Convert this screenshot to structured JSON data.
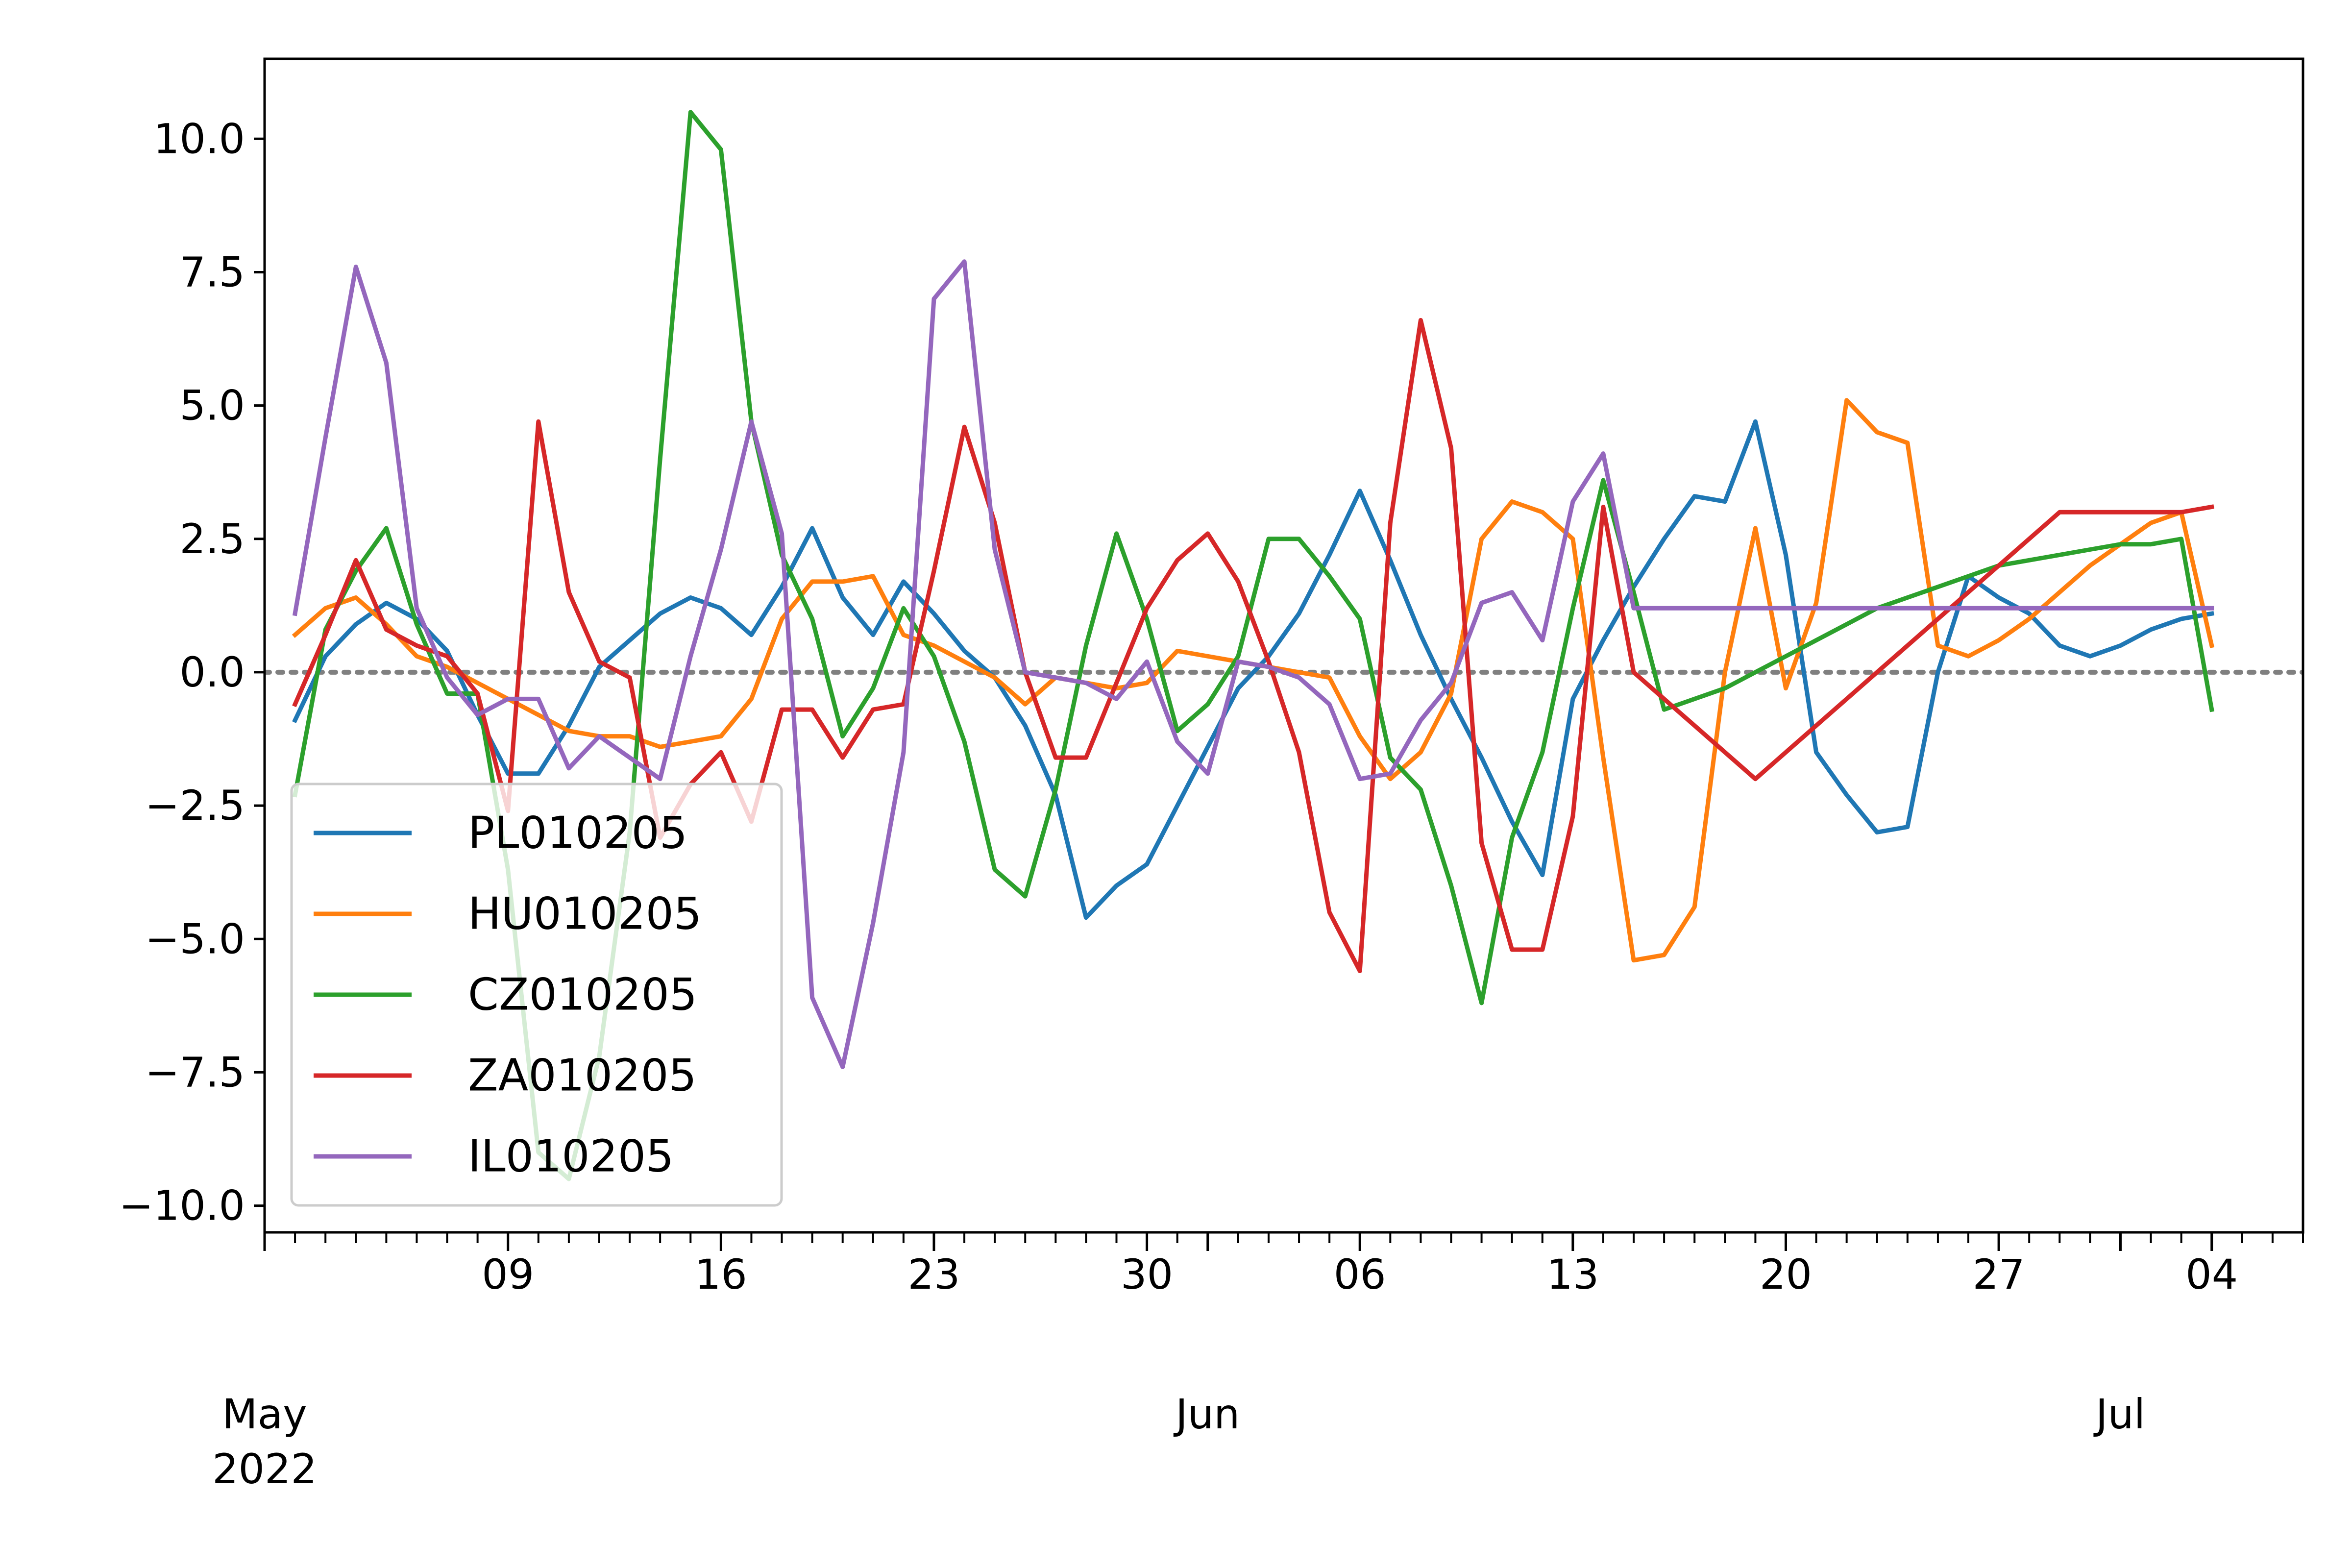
{
  "chart_data": {
    "type": "line",
    "title": "",
    "xlabel": "",
    "ylabel": "",
    "x_start": "2022-05-01",
    "x_end": "2022-07-07",
    "ylim": [
      -10.5,
      11.5
    ],
    "yticks": [
      -10.0,
      -7.5,
      -5.0,
      -2.5,
      0.0,
      2.5,
      5.0,
      7.5,
      10.0
    ],
    "ytick_labels": [
      "−10.0",
      "−7.5",
      "−5.0",
      "−2.5",
      "0.0",
      "2.5",
      "5.0",
      "7.5",
      "10.0"
    ],
    "x_major_ticks": [
      {
        "date": "2022-05-09",
        "label": "09"
      },
      {
        "date": "2022-05-16",
        "label": "16"
      },
      {
        "date": "2022-05-23",
        "label": "23"
      },
      {
        "date": "2022-05-30",
        "label": "30"
      },
      {
        "date": "2022-06-06",
        "label": "06"
      },
      {
        "date": "2022-06-13",
        "label": "13"
      },
      {
        "date": "2022-06-20",
        "label": "20"
      },
      {
        "date": "2022-06-27",
        "label": "27"
      },
      {
        "date": "2022-07-04",
        "label": "04"
      }
    ],
    "x_month_labels": [
      {
        "date": "2022-05-01",
        "label": "May\n2022"
      },
      {
        "date": "2022-06-01",
        "label": "Jun"
      },
      {
        "date": "2022-07-01",
        "label": "Jul"
      }
    ],
    "reference_line": {
      "y": 0,
      "style": "dotted",
      "color": "#808080"
    },
    "legend_position": "lower left",
    "x": [
      "2022-05-02",
      "2022-05-03",
      "2022-05-04",
      "2022-05-05",
      "2022-05-06",
      "2022-05-07",
      "2022-05-08",
      "2022-05-09",
      "2022-05-10",
      "2022-05-11",
      "2022-05-12",
      "2022-05-13",
      "2022-05-14",
      "2022-05-15",
      "2022-05-16",
      "2022-05-17",
      "2022-05-18",
      "2022-05-19",
      "2022-05-20",
      "2022-05-21",
      "2022-05-22",
      "2022-05-23",
      "2022-05-24",
      "2022-05-25",
      "2022-05-26",
      "2022-05-27",
      "2022-05-28",
      "2022-05-29",
      "2022-05-30",
      "2022-05-31",
      "2022-06-01",
      "2022-06-02",
      "2022-06-03",
      "2022-06-04",
      "2022-06-05",
      "2022-06-06",
      "2022-06-07",
      "2022-06-08",
      "2022-06-09",
      "2022-06-10",
      "2022-06-11",
      "2022-06-12",
      "2022-06-13",
      "2022-06-14",
      "2022-06-15",
      "2022-06-16",
      "2022-06-17",
      "2022-06-18",
      "2022-06-19",
      "2022-06-20",
      "2022-06-21",
      "2022-06-22",
      "2022-06-23",
      "2022-06-24",
      "2022-06-25",
      "2022-06-26",
      "2022-06-27",
      "2022-06-28",
      "2022-06-29",
      "2022-06-30",
      "2022-07-01",
      "2022-07-02",
      "2022-07-03",
      "2022-07-04"
    ],
    "series": [
      {
        "name": "PL010205",
        "color": "#1f77b4",
        "values": [
          -0.9,
          0.3,
          0.9,
          1.3,
          1.0,
          0.4,
          -0.8,
          -1.9,
          -1.9,
          -1.0,
          0.1,
          0.6,
          1.1,
          1.4,
          1.2,
          0.7,
          1.6,
          2.7,
          1.4,
          0.7,
          1.7,
          1.1,
          0.4,
          -0.1,
          -1.0,
          -2.3,
          -4.6,
          -4.0,
          -3.6,
          -2.5,
          -1.4,
          -0.3,
          0.3,
          1.1,
          2.2,
          3.4,
          2.1,
          0.7,
          -0.5,
          -1.6,
          -2.8,
          -3.8,
          -0.5,
          0.6,
          1.6,
          2.5,
          3.3,
          3.2,
          4.7,
          2.2,
          -1.5,
          -2.3,
          -3.0,
          -2.9,
          0.0,
          1.8,
          1.4,
          1.1,
          0.5,
          0.3,
          0.5,
          0.8,
          1.0,
          1.1
        ]
      },
      {
        "name": "HU010205",
        "color": "#ff7f0e",
        "values": [
          0.7,
          1.2,
          1.4,
          0.9,
          0.3,
          0.1,
          -0.2,
          -0.5,
          -0.8,
          -1.1,
          -1.2,
          -1.2,
          -1.4,
          -1.3,
          -1.2,
          -0.5,
          1.0,
          1.7,
          1.7,
          1.8,
          0.7,
          0.5,
          0.2,
          -0.1,
          -0.6,
          -0.1,
          -0.2,
          -0.3,
          -0.2,
          0.4,
          0.3,
          0.2,
          0.1,
          0.0,
          -0.1,
          -1.2,
          -2.0,
          -1.5,
          -0.4,
          2.5,
          3.2,
          3.0,
          2.5,
          -1.6,
          -5.4,
          -5.3,
          -4.4,
          0.0,
          2.7,
          -0.3,
          1.3,
          5.1,
          4.5,
          4.3,
          0.5,
          0.3,
          0.6,
          1.0,
          1.5,
          2.0,
          2.4,
          2.8,
          3.0,
          0.5
        ]
      },
      {
        "name": "CZ010205",
        "color": "#2ca02c",
        "values": [
          -2.3,
          0.8,
          1.9,
          2.7,
          0.9,
          -0.4,
          -0.4,
          -3.7,
          -9.0,
          -9.5,
          -7.2,
          -3.0,
          4.0,
          10.5,
          9.8,
          4.7,
          2.2,
          1.0,
          -1.2,
          -0.3,
          1.2,
          0.3,
          -1.3,
          -3.7,
          -4.2,
          -2.2,
          0.5,
          2.6,
          1.0,
          -1.1,
          -0.6,
          0.3,
          2.5,
          2.5,
          1.8,
          1.0,
          -1.6,
          -2.2,
          -4.0,
          -6.2,
          -3.1,
          -1.5,
          1.2,
          3.6,
          1.5,
          -0.7,
          -0.5,
          -0.3,
          0.0,
          0.3,
          0.6,
          0.9,
          1.2,
          1.4,
          1.6,
          1.8,
          2.0,
          2.1,
          2.2,
          2.3,
          2.4,
          2.4,
          2.5,
          -0.7
        ]
      },
      {
        "name": "ZA010205",
        "color": "#d62728",
        "values": [
          -0.6,
          0.7,
          2.1,
          0.8,
          0.5,
          0.3,
          -0.4,
          -2.6,
          4.7,
          1.5,
          0.2,
          -0.1,
          -3.1,
          -2.1,
          -1.5,
          -2.8,
          -0.7,
          -0.7,
          -1.6,
          -0.7,
          -0.6,
          1.9,
          4.6,
          2.8,
          0.0,
          -1.6,
          -1.6,
          -0.2,
          1.2,
          2.1,
          2.6,
          1.7,
          0.2,
          -1.5,
          -4.5,
          -5.6,
          2.8,
          6.6,
          4.2,
          -3.2,
          -5.2,
          -5.2,
          -2.7,
          3.1,
          0.0,
          -0.5,
          -1.0,
          -1.5,
          -2.0,
          -1.5,
          -1.0,
          -0.5,
          0.0,
          0.5,
          1.0,
          1.5,
          2.0,
          2.5,
          3.0,
          3.0,
          3.0,
          3.0,
          3.0,
          3.1
        ]
      },
      {
        "name": "IL010205",
        "color": "#9467bd",
        "values": [
          1.1,
          4.4,
          7.6,
          5.8,
          1.2,
          -0.1,
          -0.8,
          -0.5,
          -0.5,
          -1.8,
          -1.2,
          -1.6,
          -2.0,
          0.3,
          2.3,
          4.7,
          2.6,
          -6.1,
          -7.4,
          -4.7,
          -1.5,
          7.0,
          7.7,
          2.3,
          0.0,
          -0.1,
          -0.2,
          -0.5,
          0.2,
          -1.3,
          -1.9,
          0.2,
          0.1,
          -0.1,
          -0.6,
          -2.0,
          -1.9,
          -0.9,
          -0.2,
          1.3,
          1.5,
          0.6,
          3.2,
          4.1,
          1.2,
          1.2,
          1.2,
          1.2,
          1.2,
          1.2,
          1.2,
          1.2,
          1.2,
          1.2,
          1.2,
          1.2,
          1.2,
          1.2,
          1.2,
          1.2,
          1.2,
          1.2,
          1.2,
          1.2
        ]
      }
    ]
  }
}
